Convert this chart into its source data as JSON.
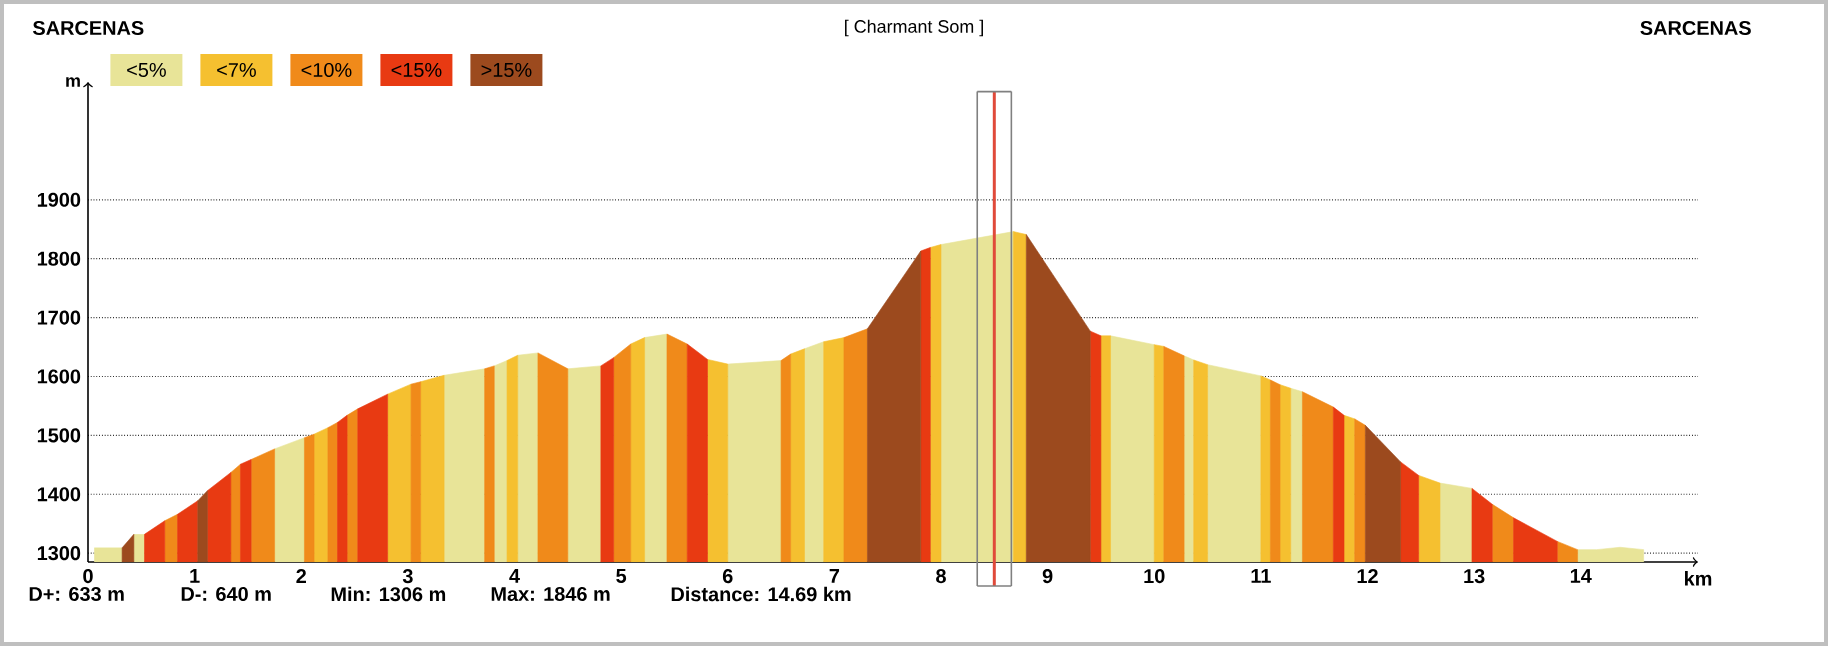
{
  "chart_data": {
    "type": "area",
    "title": "[ Charmant Som ]",
    "xlabel": "km",
    "ylabel": "m",
    "xlim": [
      0,
      15.1
    ],
    "ylim": [
      1285,
      2100
    ],
    "xticks": [
      0,
      1,
      2,
      3,
      4,
      5,
      6,
      7,
      8,
      9,
      10,
      11,
      12,
      13,
      14
    ],
    "yticks": [
      1300,
      1400,
      1500,
      1600,
      1700,
      1800,
      1900
    ],
    "grid": "y",
    "legend": "top left",
    "ref_lines": [
      {
        "axis": "x",
        "value": 8.34,
        "color": "#808080"
      },
      {
        "axis": "x",
        "value": 8.5,
        "color": "#e04a3a"
      },
      {
        "axis": "x",
        "value": 8.66,
        "color": "#808080"
      }
    ],
    "annotations": [
      "SARCENAS",
      "SARCENAS",
      "D+: 633 m",
      "D-: 640 m",
      "Min: 1306 m",
      "Max: 1846 m",
      "Distance: 14.69 km"
    ],
    "series": [
      {
        "name": "<5%",
        "color": "#e8e498",
        "x": [
          0.06,
          0.32,
          null,
          0.43,
          0.53,
          null,
          1.75,
          2.03,
          null,
          3.34,
          3.72,
          null,
          3.81,
          3.93,
          null,
          4.03,
          4.22,
          null,
          4.5,
          4.81,
          null,
          5.22,
          5.43,
          null,
          6.0,
          6.5,
          null,
          6.72,
          6.9,
          null,
          8.0,
          8.68,
          null,
          9.59,
          10.0,
          null,
          10.28,
          10.37,
          null,
          10.5,
          11.0,
          null,
          11.28,
          11.39,
          null,
          12.68,
          12.98,
          null,
          13.97,
          14.15,
          14.37,
          14.59
        ],
        "values": [
          1309,
          1309,
          null,
          1332,
          1332,
          null,
          1477,
          1496,
          null,
          1602,
          1613,
          null,
          1618,
          1627,
          null,
          1636,
          1640,
          null,
          1613,
          1618,
          null,
          1666,
          1672,
          null,
          1621,
          1627,
          null,
          1647,
          1659,
          null,
          1824,
          1846,
          null,
          1669,
          1654,
          null,
          1635,
          1628,
          null,
          1620,
          1601,
          null,
          1580,
          1574,
          null,
          1419,
          1410,
          null,
          1306,
          1306,
          1310,
          1306
        ]
      },
      {
        "name": "<7%",
        "color": "#f5c030",
        "x": [
          2.12,
          2.25,
          null,
          2.81,
          3.03,
          null,
          3.12,
          3.34,
          null,
          3.93,
          4.03,
          null,
          5.09,
          5.22,
          null,
          5.81,
          6.0,
          null,
          6.59,
          6.72,
          null,
          6.9,
          7.09,
          null,
          7.9,
          8.0,
          null,
          8.68,
          8.8,
          null,
          9.5,
          9.59,
          null,
          10.0,
          10.09,
          null,
          10.37,
          10.5,
          null,
          11.0,
          11.09,
          null,
          11.18,
          11.28,
          null,
          11.78,
          11.88,
          null,
          12.48,
          12.68
        ],
        "values": [
          1502,
          1513,
          null,
          1570,
          1587,
          null,
          1591,
          1602,
          null,
          1627,
          1636,
          null,
          1655,
          1666,
          null,
          1629,
          1621,
          null,
          1638,
          1647,
          null,
          1659,
          1666,
          null,
          1819,
          1824,
          null,
          1846,
          1841,
          null,
          1669,
          1669,
          null,
          1654,
          1651,
          null,
          1628,
          1620,
          null,
          1601,
          1594,
          null,
          1586,
          1580,
          null,
          1534,
          1528,
          null,
          1432,
          1419
        ]
      },
      {
        "name": "<10%",
        "color": "#f08a1a",
        "x": [
          0.72,
          0.84,
          null,
          1.34,
          1.43,
          null,
          1.53,
          1.75,
          null,
          2.03,
          2.12,
          null,
          2.25,
          2.34,
          null,
          2.43,
          2.53,
          null,
          3.03,
          3.12,
          null,
          3.72,
          3.81,
          null,
          4.22,
          4.5,
          null,
          4.93,
          5.09,
          null,
          5.43,
          5.62,
          null,
          6.5,
          6.59,
          null,
          7.09,
          7.31,
          null,
          10.09,
          10.28,
          null,
          11.09,
          11.18,
          null,
          11.39,
          11.68,
          null,
          11.88,
          11.98,
          null,
          13.17,
          13.37,
          null,
          13.78,
          13.97
        ],
        "values": [
          1355,
          1366,
          null,
          1437,
          1451,
          null,
          1459,
          1477,
          null,
          1496,
          1502,
          null,
          1513,
          1522,
          null,
          1534,
          1545,
          null,
          1587,
          1591,
          null,
          1613,
          1618,
          null,
          1640,
          1613,
          null,
          1632,
          1655,
          null,
          1672,
          1655,
          null,
          1627,
          1638,
          null,
          1666,
          1681,
          null,
          1651,
          1635,
          null,
          1594,
          1586,
          null,
          1574,
          1548,
          null,
          1528,
          1517,
          null,
          1383,
          1360,
          null,
          1320,
          1306
        ]
      },
      {
        "name": "<15%",
        "color": "#e83a12",
        "x": [
          0.53,
          0.72,
          null,
          0.84,
          1.03,
          null,
          1.12,
          1.34,
          null,
          1.43,
          1.53,
          null,
          2.34,
          2.43,
          null,
          2.53,
          2.81,
          null,
          4.81,
          4.93,
          null,
          5.62,
          5.81,
          null,
          7.81,
          7.9,
          null,
          9.4,
          9.5,
          null,
          11.68,
          11.78,
          null,
          12.31,
          12.48,
          null,
          12.98,
          13.17,
          null,
          13.37,
          13.78
        ],
        "values": [
          1332,
          1355,
          null,
          1366,
          1389,
          null,
          1406,
          1437,
          null,
          1451,
          1459,
          null,
          1522,
          1534,
          null,
          1545,
          1570,
          null,
          1618,
          1632,
          null,
          1655,
          1629,
          null,
          1813,
          1819,
          null,
          1677,
          1669,
          null,
          1548,
          1534,
          null,
          1455,
          1432,
          null,
          1410,
          1383,
          null,
          1360,
          1320
        ]
      },
      {
        "name": ">15%",
        "color": "#9c4a1e",
        "x": [
          0.32,
          0.43,
          null,
          1.03,
          1.12,
          null,
          7.31,
          7.81,
          null,
          8.8,
          9.4,
          null,
          11.98,
          12.31
        ],
        "values": [
          1309,
          1332,
          null,
          1389,
          1406,
          null,
          1681,
          1813,
          null,
          1841,
          1677,
          null,
          1517,
          1455
        ]
      }
    ]
  }
}
